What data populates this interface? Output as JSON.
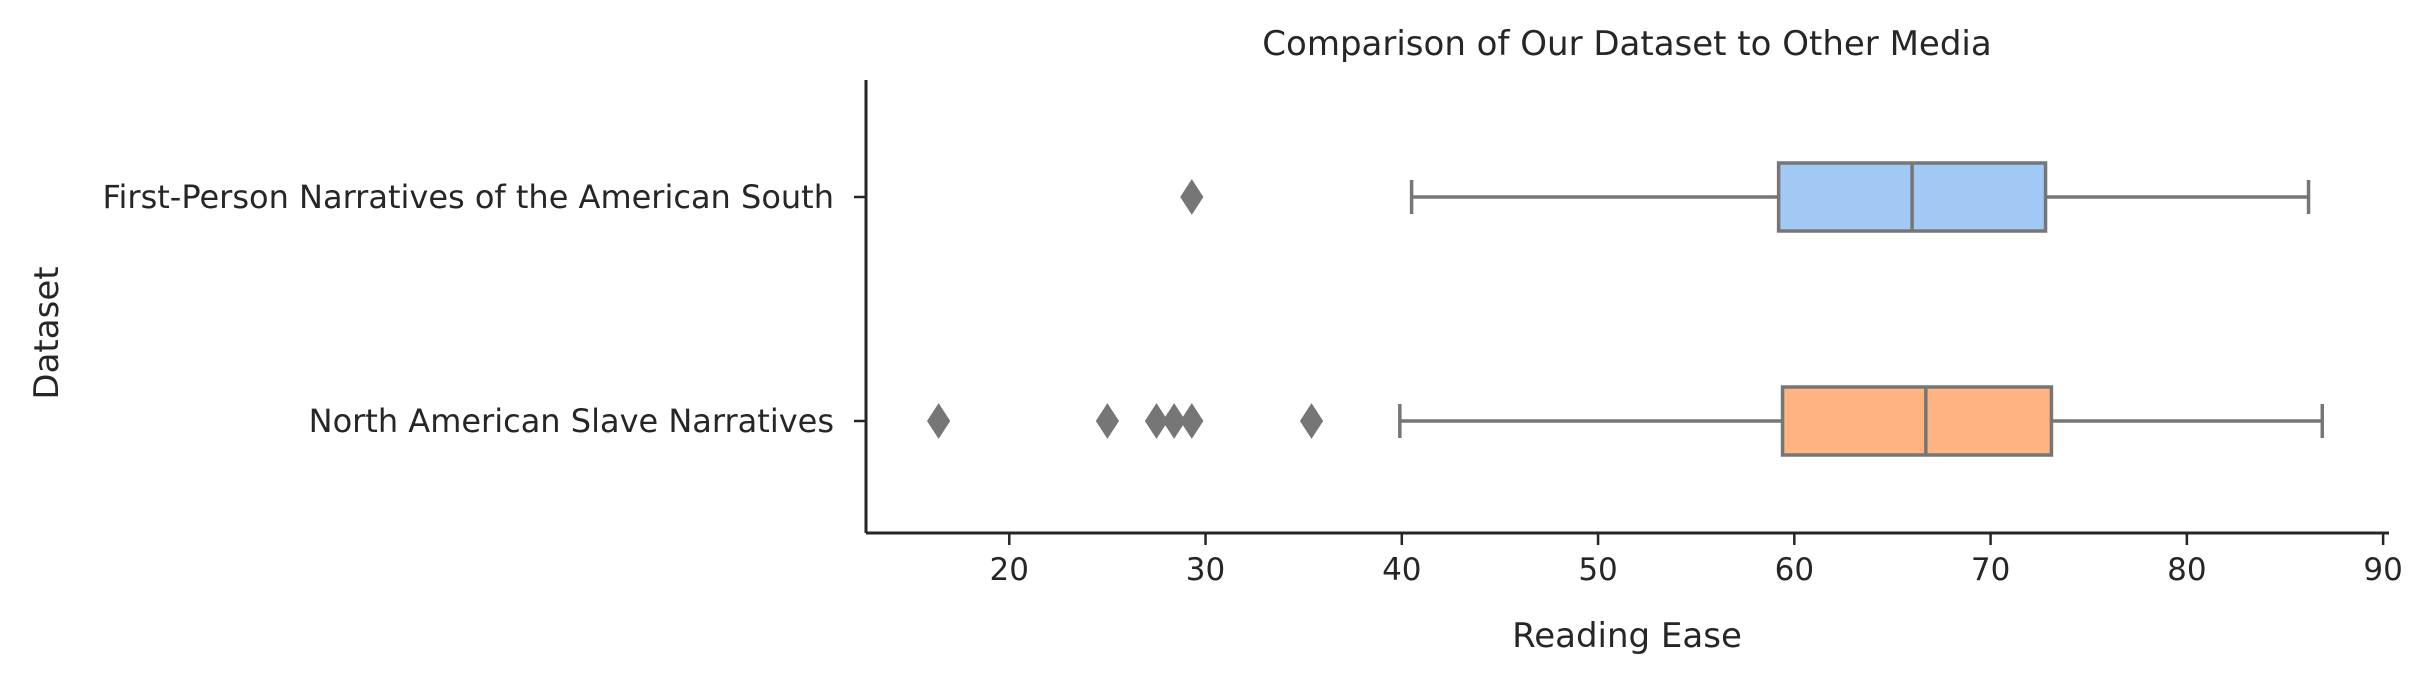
{
  "chart_data": {
    "type": "boxplot",
    "orientation": "horizontal",
    "title": "Comparison of Our Dataset to Other Media",
    "xlabel": "Reading Ease",
    "ylabel": "Dataset",
    "xlim": [
      12.7,
      90.3
    ],
    "xticks": [
      20,
      30,
      40,
      50,
      60,
      70,
      80,
      90
    ],
    "grid": false,
    "categories": [
      "First-Person Narratives of the American South",
      "North American Slave Narratives"
    ],
    "boxes": [
      {
        "category": "First-Person Narratives of the American South",
        "whisker_low": 40.5,
        "q1": 59.2,
        "median": 66.0,
        "q3": 72.8,
        "whisker_high": 86.2,
        "outliers": [
          29.3
        ],
        "color": "#a1c9f4"
      },
      {
        "category": "North American Slave Narratives",
        "whisker_low": 39.9,
        "q1": 59.4,
        "median": 66.7,
        "q3": 73.1,
        "whisker_high": 86.9,
        "outliers": [
          16.4,
          25.0,
          27.5,
          28.4,
          29.3,
          35.4
        ],
        "color": "#ffb482"
      }
    ],
    "colors": {
      "axis": "#262626",
      "box_edge": "#767676",
      "text": "#262626"
    }
  }
}
